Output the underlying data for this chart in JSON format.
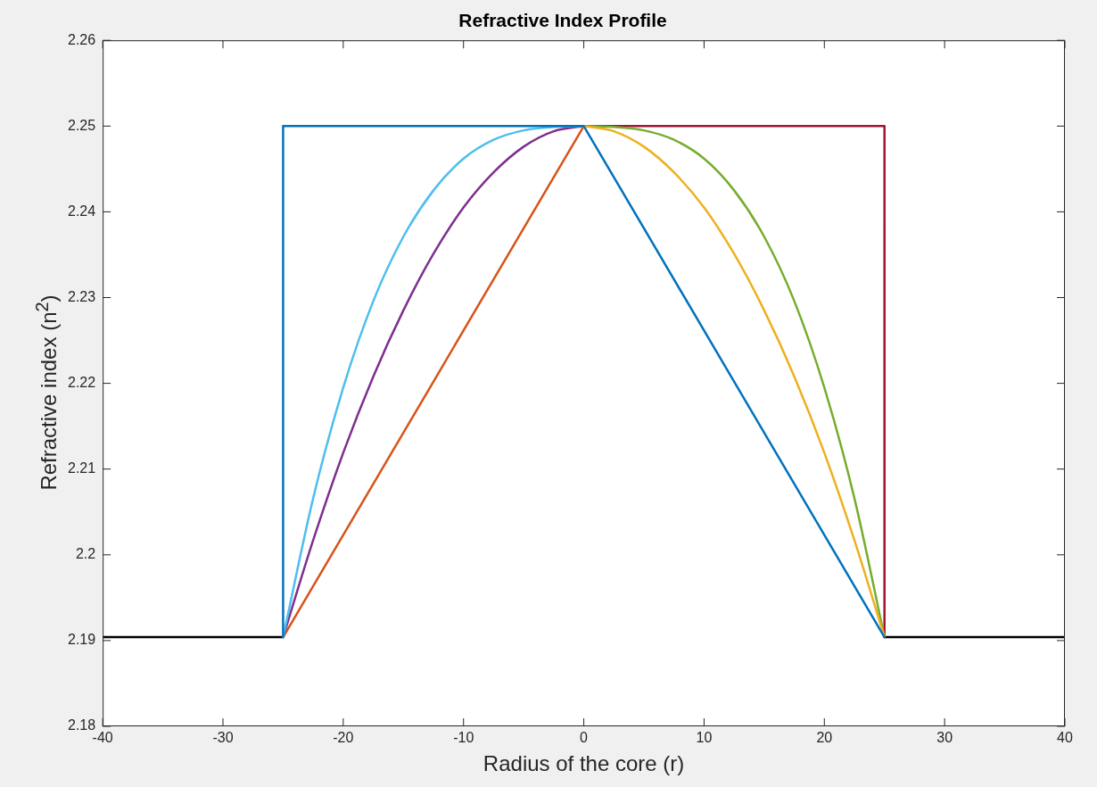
{
  "chart_data": {
    "type": "line",
    "title": "Refractive Index Profile",
    "xlabel": "Radius of the core (r)",
    "ylabel": "Refractive index (n$^{2}$)",
    "xlim": [
      -40,
      40
    ],
    "xticks": [
      -40,
      -30,
      -20,
      -10,
      0,
      10,
      20,
      30,
      40
    ],
    "ylim": [
      2.18,
      2.26
    ],
    "yticks": [
      2.18,
      2.19,
      2.2,
      2.21,
      2.22,
      2.23,
      2.24,
      2.25,
      2.26
    ],
    "legend": false,
    "marker": "none",
    "line_style": "solid",
    "series": [
      {
        "color": "#0072bd",
        "x": [
          -25,
          -25,
          0
        ],
        "values": [
          2.1904,
          2.25,
          2.25
        ]
      },
      {
        "color": "#4dbeee",
        "x": [
          -25,
          -22.5,
          -20,
          -17.5,
          -15,
          -12.5,
          -10,
          -7.5,
          -5,
          -2.5,
          0
        ],
        "values": [
          2.1904,
          2.2066,
          2.2195,
          2.2296,
          2.2371,
          2.2425,
          2.2462,
          2.2484,
          2.2495,
          2.2499,
          2.25
        ]
      },
      {
        "color": "#7e2f8e",
        "x": [
          -25,
          -22.5,
          -20,
          -17.5,
          -15,
          -12.5,
          -10,
          -7.5,
          -5,
          -2.5,
          0
        ],
        "values": [
          2.1904,
          2.2017,
          2.2119,
          2.2208,
          2.2285,
          2.2351,
          2.2405,
          2.2446,
          2.2476,
          2.2494,
          2.25
        ]
      },
      {
        "color": "#d95319",
        "x": [
          -25,
          0
        ],
        "values": [
          2.1904,
          2.25
        ]
      },
      {
        "color": "#0072bd",
        "x": [
          0,
          25
        ],
        "values": [
          2.25,
          2.1904
        ]
      },
      {
        "color": "#edb120",
        "x": [
          0,
          2.5,
          5,
          7.5,
          10,
          12.5,
          15,
          17.5,
          20,
          22.5,
          25
        ],
        "values": [
          2.25,
          2.2494,
          2.2476,
          2.2446,
          2.2405,
          2.2351,
          2.2285,
          2.2208,
          2.2119,
          2.2017,
          2.1904
        ]
      },
      {
        "color": "#77ac30",
        "x": [
          0,
          2.5,
          5,
          7.5,
          10,
          12.5,
          15,
          17.5,
          20,
          22.5,
          25
        ],
        "values": [
          2.25,
          2.2499,
          2.2495,
          2.2484,
          2.2462,
          2.2425,
          2.2371,
          2.2296,
          2.2195,
          2.2066,
          2.1904
        ]
      },
      {
        "color": "#a2142f",
        "x": [
          0,
          25,
          25
        ],
        "values": [
          2.25,
          2.25,
          2.1904
        ]
      },
      {
        "color": "#000000",
        "x": [
          -40,
          -25,
          0,
          25,
          40
        ],
        "values": [
          2.1904,
          2.1904,
          null,
          2.1904,
          2.1904
        ]
      }
    ]
  }
}
